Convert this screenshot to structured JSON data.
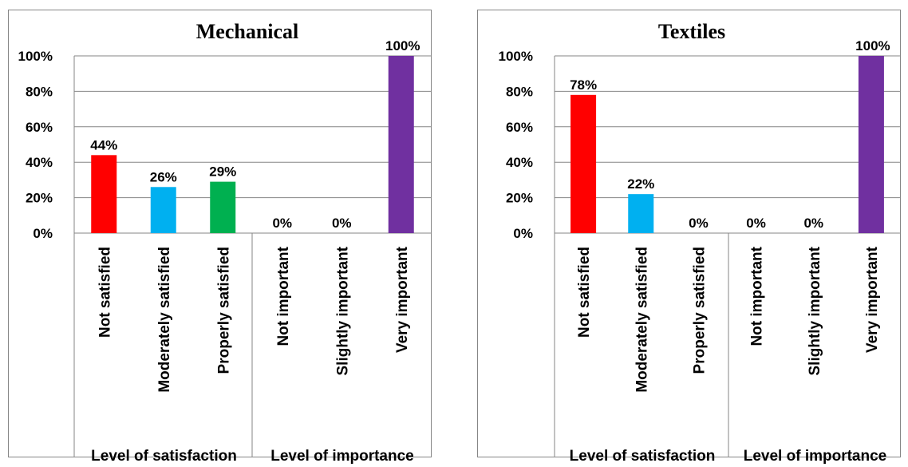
{
  "chart_data": [
    {
      "type": "bar",
      "title": "Mechanical",
      "categories": [
        "Not satisfied",
        "Moderately satisfied",
        "Properly satisfied",
        "Not important",
        "Slightly important",
        "Very important"
      ],
      "values": [
        44,
        26,
        29,
        0,
        0,
        100
      ],
      "value_labels": [
        "44%",
        "26%",
        "29%",
        "0%",
        "0%",
        "100%"
      ],
      "bar_colors": [
        "#ff0000",
        "#00b0f0",
        "#00b050",
        "#00b050",
        "#00b050",
        "#7030a0"
      ],
      "groups": [
        "Level of satisfaction",
        "Level of importance"
      ],
      "ylim": [
        0,
        100
      ],
      "yticks": [
        "0%",
        "20%",
        "40%",
        "60%",
        "80%",
        "100%"
      ],
      "grid": true
    },
    {
      "type": "bar",
      "title": "Textiles",
      "categories": [
        "Not satisfied",
        "Moderately satisfied",
        "Properly satisfied",
        "Not important",
        "Slightly important",
        "Very important"
      ],
      "values": [
        78,
        22,
        0,
        0,
        0,
        100
      ],
      "value_labels": [
        "78%",
        "22%",
        "0%",
        "0%",
        "0%",
        "100%"
      ],
      "bar_colors": [
        "#ff0000",
        "#00b0f0",
        "#00b050",
        "#00b050",
        "#00b050",
        "#7030a0"
      ],
      "groups": [
        "Level of satisfaction",
        "Level of importance"
      ],
      "ylim": [
        0,
        100
      ],
      "yticks": [
        "0%",
        "20%",
        "40%",
        "60%",
        "80%",
        "100%"
      ],
      "grid": true
    }
  ]
}
